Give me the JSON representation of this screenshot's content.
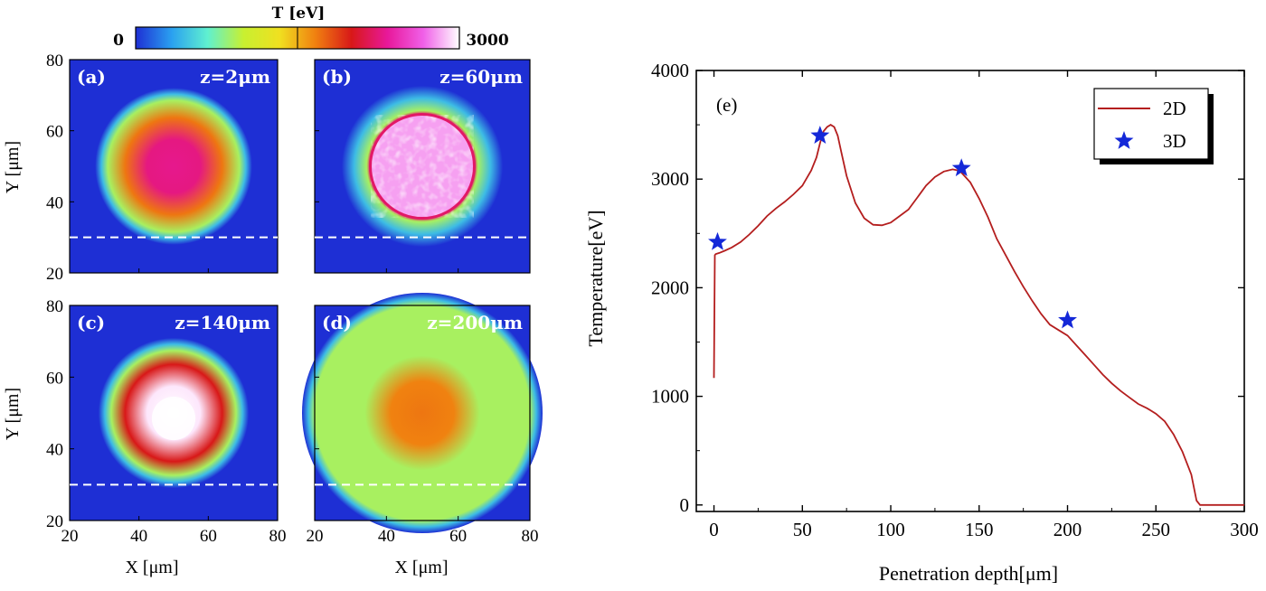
{
  "chart_data": [
    {
      "type": "heatmap",
      "colorbar": {
        "label": "T [eV]",
        "min_label": "0",
        "max_label": "3000",
        "range": [
          0,
          3000
        ],
        "colors": [
          "#1e2fd4",
          "#2aa0f0",
          "#5ff0d0",
          "#c8f030",
          "#f0e020",
          "#f08010",
          "#d81818",
          "#e8189a",
          "#f060e8",
          "#ffffff"
        ]
      },
      "xlabel": "X [μm]",
      "ylabel": "Y [μm]",
      "xticks": [
        "20",
        "40",
        "60",
        "80"
      ],
      "yticks": [
        "20",
        "40",
        "60",
        "80"
      ],
      "xlim": [
        20,
        80
      ],
      "ylim": [
        20,
        80
      ],
      "dashed_line_y": 30,
      "panels": [
        {
          "id": "(a)",
          "z_label": "z=2μm",
          "center": [
            50,
            50
          ],
          "core_radius": 14,
          "core_T": 2300,
          "edge_T": 1700,
          "outer_radius": 19
        },
        {
          "id": "(b)",
          "z_label": "z=60μm",
          "center": [
            50,
            50
          ],
          "core_radius": 14.5,
          "core_T": 2800,
          "edge_T": 2200,
          "outer_radius": 15.5
        },
        {
          "id": "(c)",
          "z_label": "z=140μm",
          "center": [
            50,
            50
          ],
          "core_radius": 14,
          "core_T": 3000,
          "edge_T": 2000,
          "outer_radius": 18
        },
        {
          "id": "(d)",
          "z_label": "z=200μm",
          "center": [
            50,
            50
          ],
          "core_radius": 16,
          "core_T": 1700,
          "edge_T": 900,
          "outer_radius": 30
        }
      ]
    },
    {
      "type": "line",
      "panel_label": "(e)",
      "xlabel": "Penetration depth[μm]",
      "ylabel": "Temperature[eV]",
      "xlim": [
        -10,
        300
      ],
      "ylim": [
        -60,
        4000
      ],
      "xticks": [
        0,
        50,
        100,
        150,
        200,
        250,
        300
      ],
      "yticks": [
        0,
        1000,
        2000,
        3000,
        4000
      ],
      "legend_position": "top-right",
      "series": [
        {
          "name": "2D",
          "color": "#b41e1e",
          "style": "line",
          "x": [
            0,
            0.5,
            1,
            3,
            6,
            10,
            15,
            20,
            25,
            30,
            35,
            40,
            45,
            50,
            55,
            58,
            60,
            62,
            64,
            66,
            68,
            70,
            72,
            75,
            80,
            85,
            90,
            95,
            100,
            105,
            110,
            115,
            120,
            125,
            130,
            135,
            138,
            140,
            145,
            150,
            155,
            160,
            165,
            170,
            175,
            180,
            185,
            190,
            195,
            200,
            205,
            210,
            215,
            220,
            225,
            230,
            235,
            240,
            245,
            250,
            255,
            260,
            265,
            270,
            273,
            275,
            280,
            290,
            300
          ],
          "y": [
            1170,
            2300,
            2310,
            2320,
            2340,
            2370,
            2420,
            2490,
            2570,
            2660,
            2730,
            2790,
            2860,
            2940,
            3080,
            3200,
            3330,
            3440,
            3480,
            3500,
            3480,
            3400,
            3250,
            3030,
            2780,
            2640,
            2580,
            2575,
            2600,
            2660,
            2720,
            2830,
            2940,
            3020,
            3070,
            3090,
            3080,
            3060,
            2970,
            2820,
            2650,
            2450,
            2300,
            2150,
            2010,
            1880,
            1760,
            1660,
            1610,
            1560,
            1470,
            1380,
            1290,
            1200,
            1120,
            1050,
            990,
            930,
            890,
            840,
            770,
            650,
            490,
            280,
            40,
            0,
            0,
            0,
            0
          ]
        },
        {
          "name": "3D",
          "color": "#1428d8",
          "style": "star",
          "x": [
            2,
            60,
            140,
            200
          ],
          "y": [
            2420,
            3400,
            3100,
            1700
          ]
        }
      ]
    }
  ]
}
